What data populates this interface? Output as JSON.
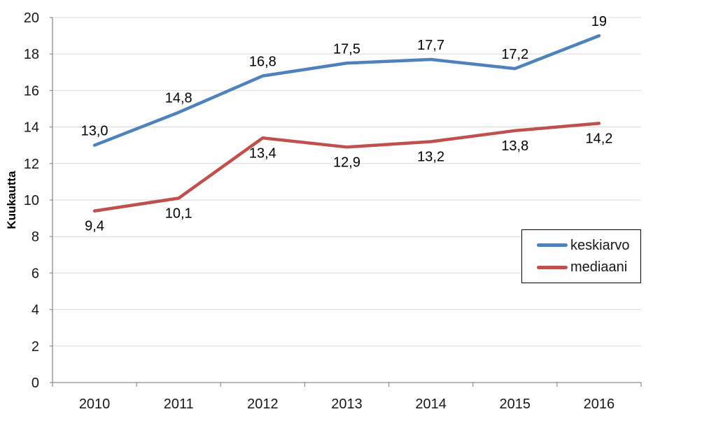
{
  "chart_data": {
    "type": "line",
    "title": "",
    "xlabel": "",
    "ylabel": "Kuukautta",
    "categories": [
      "2010",
      "2011",
      "2012",
      "2013",
      "2014",
      "2015",
      "2016"
    ],
    "series": [
      {
        "name": "keskiarvo",
        "color": "#4F81BD",
        "values": [
          13.0,
          14.8,
          16.8,
          17.5,
          17.7,
          17.2,
          19.0
        ],
        "data_labels": [
          "13,0",
          "14,8",
          "16,8",
          "17,5",
          "17,7",
          "17,2",
          "19"
        ],
        "label_position": "above"
      },
      {
        "name": "mediaani",
        "color": "#C0504D",
        "values": [
          9.4,
          10.1,
          13.4,
          12.9,
          13.2,
          13.8,
          14.2
        ],
        "data_labels": [
          "9,4",
          "10,1",
          "13,4",
          "12,9",
          "13,2",
          "13,8",
          "14,2"
        ],
        "label_position": "below"
      }
    ],
    "ylim": [
      0,
      20
    ],
    "ytick_step": 2,
    "ytick_labels": [
      "0",
      "2",
      "4",
      "6",
      "8",
      "10",
      "12",
      "14",
      "16",
      "18",
      "20"
    ],
    "grid": true,
    "legend_position": "inside-middle-right"
  },
  "colors": {
    "gridline": "#D9D9D9",
    "axis": "#8C8C8C",
    "text": "#171717",
    "background": "#FFFFFF",
    "legend_border": "#000000"
  }
}
